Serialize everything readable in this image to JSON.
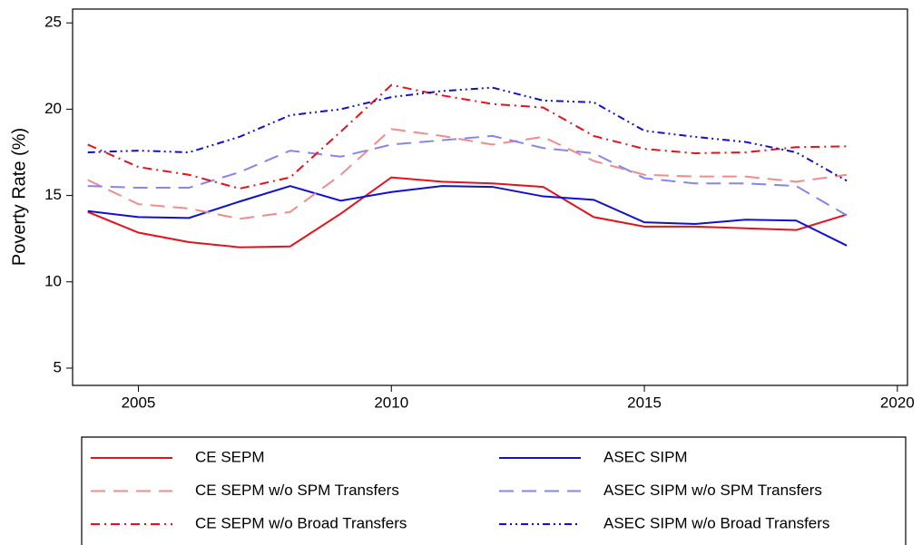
{
  "chart_data": {
    "type": "line",
    "y_label": "Poverty Rate (%)",
    "x": [
      2004,
      2005,
      2006,
      2007,
      2008,
      2009,
      2010,
      2011,
      2012,
      2013,
      2014,
      2015,
      2016,
      2017,
      2018,
      2019
    ],
    "xlim": [
      2003.7,
      2020.2
    ],
    "xticks": [
      2005,
      2010,
      2015,
      2020
    ],
    "ylim": [
      4,
      25.8
    ],
    "yticks": [
      5,
      10,
      15,
      20,
      25
    ],
    "grid": false,
    "legend": "bottom",
    "series": [
      {
        "name": "CE SEPM",
        "color": "#e8101a",
        "dash": "solid",
        "values": [
          14.05,
          12.85,
          12.3,
          12.0,
          12.05,
          13.95,
          16.05,
          15.8,
          15.7,
          15.5,
          13.75,
          13.2,
          13.2,
          13.1,
          13.0,
          13.9
        ]
      },
      {
        "name": "ASEC SIPM",
        "color": "#1010d0",
        "dash": "solid",
        "values": [
          14.1,
          13.75,
          13.7,
          14.65,
          15.55,
          14.7,
          15.2,
          15.55,
          15.5,
          14.95,
          14.75,
          13.45,
          13.35,
          13.6,
          13.55,
          12.1
        ]
      },
      {
        "name": "CE SEPM w/o SPM Transfers",
        "color": "#f28b8b",
        "dash": "dashed",
        "values": [
          15.9,
          14.5,
          14.25,
          13.65,
          14.05,
          16.2,
          18.85,
          18.45,
          17.95,
          18.4,
          17.0,
          16.2,
          16.1,
          16.1,
          15.8,
          16.2
        ]
      },
      {
        "name": "ASEC SIPM w/o SPM Transfers",
        "color": "#8585f0",
        "dash": "dashed",
        "values": [
          15.55,
          15.45,
          15.45,
          16.35,
          17.6,
          17.25,
          17.95,
          18.2,
          18.45,
          17.75,
          17.45,
          16.0,
          15.7,
          15.7,
          15.55,
          13.85
        ]
      },
      {
        "name": "CE SEPM w/o Broad Transfers",
        "color": "#e8101a",
        "dash": "dashdot",
        "values": [
          17.95,
          16.65,
          16.2,
          15.4,
          16.05,
          18.7,
          21.4,
          20.8,
          20.3,
          20.1,
          18.45,
          17.7,
          17.45,
          17.5,
          17.8,
          17.85
        ]
      },
      {
        "name": "ASEC SIPM w/o Broad Transfers",
        "color": "#1010d0",
        "dash": "dashdotdot",
        "values": [
          17.5,
          17.6,
          17.5,
          18.4,
          19.65,
          20.0,
          20.7,
          21.05,
          21.25,
          20.5,
          20.4,
          18.75,
          18.4,
          18.1,
          17.5,
          15.85
        ]
      }
    ]
  }
}
